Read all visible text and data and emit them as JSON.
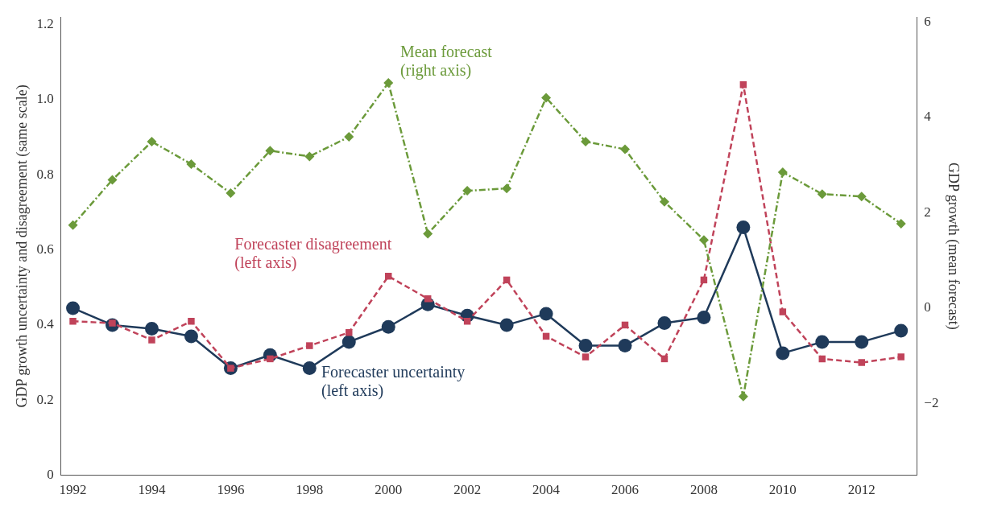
{
  "chart_data": {
    "type": "line",
    "xlabel": null,
    "ylabel": "GDP growth uncertainty and disagreement (same scale)",
    "y2label": "GDP growth (mean forecast)",
    "x": [
      1992,
      1993,
      1994,
      1995,
      1996,
      1997,
      1998,
      1999,
      2000,
      2001,
      2002,
      2003,
      2004,
      2005,
      2006,
      2007,
      2008,
      2009,
      2010,
      2011,
      2012,
      2013
    ],
    "series": [
      {
        "name": "Mean forecast (right axis)",
        "color": "#6b9a3a",
        "axis": "y2",
        "marker": "diamond",
        "line_style": "dotted",
        "values": [
          1.74,
          2.69,
          3.49,
          3.02,
          2.41,
          3.3,
          3.18,
          3.59,
          4.72,
          1.56,
          2.46,
          2.51,
          4.41,
          3.49,
          3.33,
          2.23,
          1.43,
          -1.85,
          2.85,
          2.39,
          2.34,
          1.77
        ]
      },
      {
        "name": "Forecaster disagreement (left axis)",
        "color": "#c0435a",
        "axis": "y",
        "marker": "square",
        "line_style": "dashed",
        "values": [
          0.41,
          0.405,
          0.36,
          0.41,
          0.285,
          0.31,
          0.345,
          0.38,
          0.53,
          0.47,
          0.41,
          0.52,
          0.37,
          0.315,
          0.4,
          0.31,
          0.52,
          1.04,
          0.435,
          0.31,
          0.3,
          0.315
        ]
      },
      {
        "name": "Forecaster uncertainty (left axis)",
        "color": "#1f3a5a",
        "axis": "y",
        "marker": "circle",
        "line_style": "solid",
        "values": [
          0.445,
          0.4,
          0.39,
          0.37,
          0.285,
          0.32,
          0.285,
          0.355,
          0.395,
          0.455,
          0.425,
          0.4,
          0.43,
          0.345,
          0.345,
          0.405,
          0.42,
          0.66,
          0.325,
          0.355,
          0.355,
          0.385
        ]
      }
    ],
    "xlim": [
      1991.7,
      2013.4
    ],
    "xticks": [
      1992,
      1994,
      1996,
      1998,
      2000,
      2002,
      2004,
      2006,
      2008,
      2010,
      2012
    ],
    "ylim": [
      0,
      1.22
    ],
    "yticks": [
      0,
      0.2,
      0.4,
      0.6,
      0.8,
      {
        "value": 1,
        "label": "1.0"
      },
      1.2
    ],
    "y2lim": [
      -3.5,
      6.1
    ],
    "y2ticks": [
      {
        "value": -2,
        "label": "−2"
      },
      0,
      2,
      4,
      6
    ],
    "grid": false,
    "legend": false
  }
}
